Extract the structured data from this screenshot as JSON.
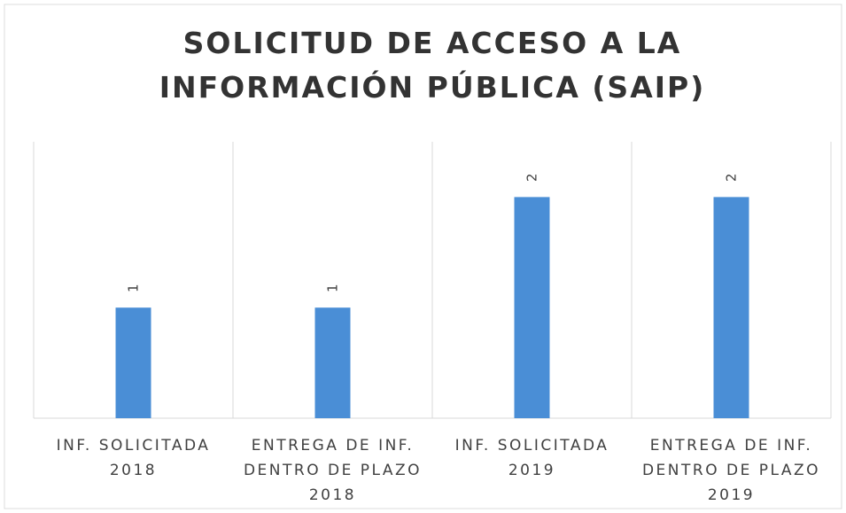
{
  "chart_data": {
    "type": "bar",
    "title": "SOLICITUD DE ACCESO A LA\nINFORMACIÓN PÚBLICA (SAIP)",
    "categories": [
      "INF. SOLICITADA\n2018",
      "ENTREGA DE INF.\nDENTRO DE PLAZO\n2018",
      "INF. SOLICITADA\n2019",
      "ENTREGA DE INF.\nDENTRO DE PLAZO\n2019"
    ],
    "values": [
      1,
      1,
      2,
      2
    ],
    "color": "#4a8ed6",
    "ylim": [
      0,
      2.5
    ],
    "grid": true
  }
}
